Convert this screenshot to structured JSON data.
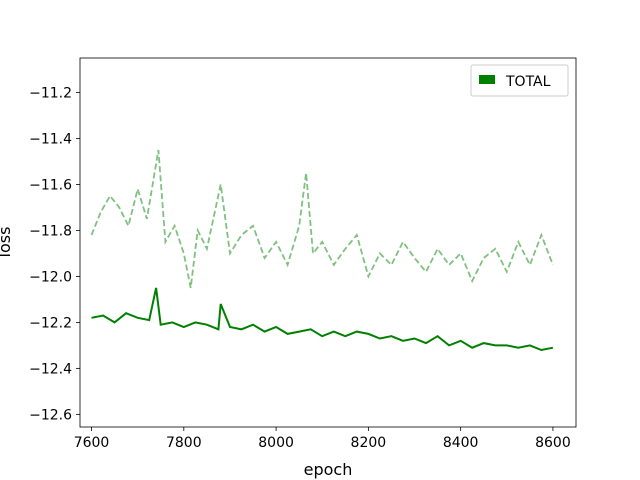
{
  "chart_data": {
    "type": "line",
    "title": "",
    "xlabel": "epoch",
    "ylabel": "loss",
    "xlim": [
      7575,
      8650
    ],
    "ylim": [
      -12.655,
      -11.05
    ],
    "xticks": [
      7600,
      7800,
      8000,
      8200,
      8400,
      8600
    ],
    "xtick_labels": [
      "7600",
      "7800",
      "8000",
      "8200",
      "8400",
      "8600"
    ],
    "yticks": [
      -12.6,
      -12.4,
      -12.2,
      -12.0,
      -11.8,
      -11.6,
      -11.4,
      -11.2
    ],
    "ytick_labels": [
      "−12.6",
      "−12.4",
      "−12.2",
      "−12.0",
      "−11.8",
      "−11.6",
      "−11.4",
      "−11.2"
    ],
    "grid": false,
    "legend": {
      "position": "top-right",
      "entries": [
        {
          "label": "TOTAL",
          "color": "#008000"
        }
      ]
    },
    "series": [
      {
        "name": "TOTAL",
        "color": "#008000",
        "style": "solid",
        "x": [
          7600,
          7625,
          7650,
          7675,
          7700,
          7725,
          7740,
          7750,
          7775,
          7800,
          7825,
          7850,
          7875,
          7880,
          7900,
          7925,
          7950,
          7975,
          8000,
          8025,
          8050,
          8075,
          8100,
          8125,
          8150,
          8175,
          8200,
          8225,
          8250,
          8275,
          8300,
          8325,
          8350,
          8375,
          8400,
          8425,
          8450,
          8475,
          8500,
          8525,
          8550,
          8575,
          8600
        ],
        "y": [
          -12.18,
          -12.17,
          -12.2,
          -12.16,
          -12.18,
          -12.19,
          -12.05,
          -12.21,
          -12.2,
          -12.22,
          -12.2,
          -12.21,
          -12.23,
          -12.12,
          -12.22,
          -12.23,
          -12.21,
          -12.24,
          -12.22,
          -12.25,
          -12.24,
          -12.23,
          -12.26,
          -12.24,
          -12.26,
          -12.24,
          -12.25,
          -12.27,
          -12.26,
          -12.28,
          -12.27,
          -12.29,
          -12.26,
          -12.3,
          -12.28,
          -12.31,
          -12.29,
          -12.3,
          -12.3,
          -12.31,
          -12.3,
          -12.32,
          -12.31
        ]
      },
      {
        "name": "",
        "color": "#80c080",
        "style": "dashed",
        "x": [
          7600,
          7620,
          7640,
          7660,
          7680,
          7700,
          7720,
          7745,
          7760,
          7780,
          7800,
          7815,
          7830,
          7850,
          7880,
          7900,
          7925,
          7950,
          7975,
          8000,
          8025,
          8050,
          8065,
          8080,
          8100,
          8125,
          8150,
          8175,
          8200,
          8225,
          8250,
          8275,
          8300,
          8325,
          8350,
          8375,
          8400,
          8425,
          8450,
          8475,
          8500,
          8525,
          8550,
          8575,
          8600
        ],
        "y": [
          -11.82,
          -11.72,
          -11.65,
          -11.7,
          -11.78,
          -11.62,
          -11.75,
          -11.45,
          -11.85,
          -11.78,
          -11.9,
          -12.05,
          -11.8,
          -11.88,
          -11.6,
          -11.9,
          -11.82,
          -11.78,
          -11.92,
          -11.85,
          -11.95,
          -11.78,
          -11.55,
          -11.9,
          -11.85,
          -11.95,
          -11.88,
          -11.82,
          -12.0,
          -11.9,
          -11.95,
          -11.85,
          -11.92,
          -11.98,
          -11.88,
          -11.95,
          -11.9,
          -12.02,
          -11.92,
          -11.88,
          -11.98,
          -11.85,
          -11.95,
          -11.82,
          -11.95
        ]
      }
    ]
  }
}
